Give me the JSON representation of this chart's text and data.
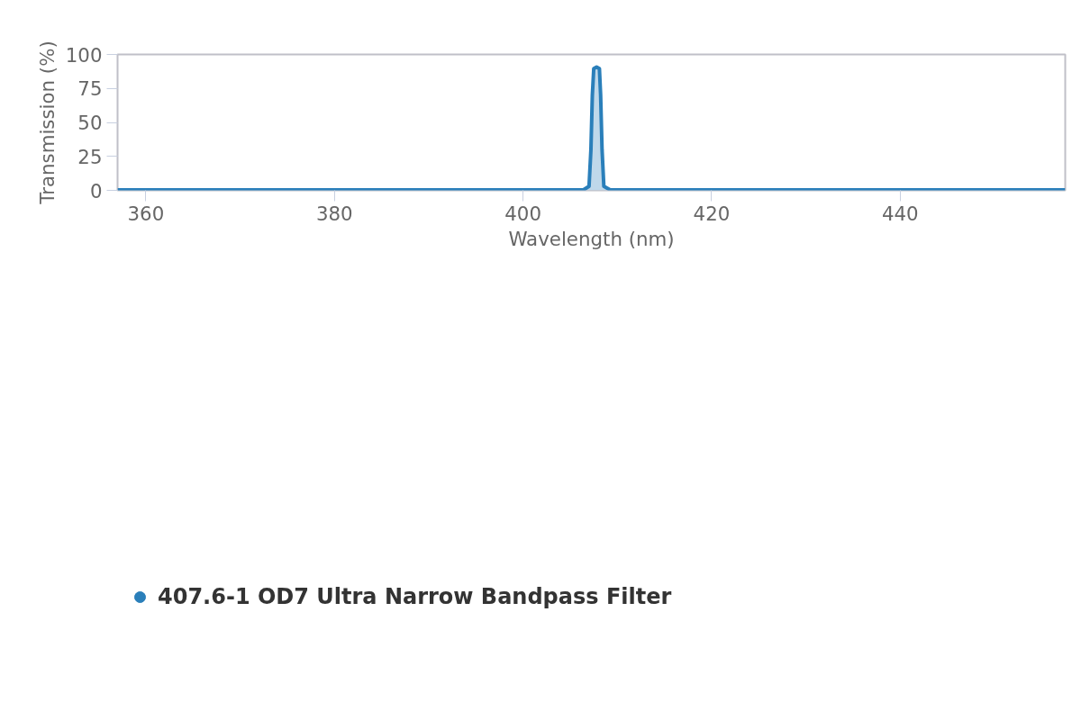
{
  "chart_data": {
    "type": "area",
    "xlabel": "Wavelength (nm)",
    "ylabel": "Transmission (%)",
    "xlim": [
      357,
      457.5
    ],
    "xticks": [
      360,
      380,
      400,
      420,
      440
    ],
    "ylim": [
      0,
      100
    ],
    "yticks": [
      0,
      25,
      50,
      75,
      100
    ],
    "grid": false,
    "legend": "bottom left",
    "series": [
      {
        "name": "407.6-1 OD7 Ultra Narrow Bandpass Filter",
        "color": "#2a7fba",
        "x": [
          357,
          406.4,
          407.0,
          407.2,
          407.35,
          407.5,
          407.8,
          408.1,
          408.23,
          408.38,
          408.57,
          409.25,
          457.5
        ],
        "values": [
          0.3,
          0.3,
          3,
          30,
          70,
          89.5,
          90.7,
          89.5,
          70,
          30,
          3,
          0.3,
          0.3
        ]
      }
    ]
  }
}
